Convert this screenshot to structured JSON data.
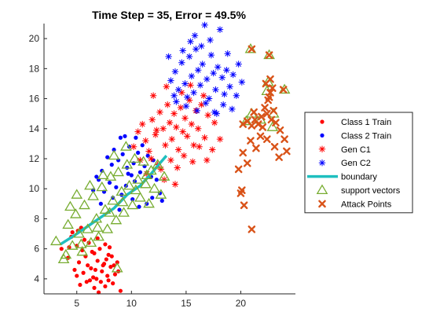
{
  "chart_data": {
    "type": "scatter",
    "title": "Time Step = 35, Error = 49.5%",
    "xlabel": "",
    "ylabel": "",
    "xlim": [
      2,
      25
    ],
    "ylim": [
      3,
      21
    ],
    "xticks": [
      5,
      10,
      15,
      20
    ],
    "yticks": [
      4,
      6,
      8,
      10,
      12,
      14,
      16,
      18,
      20
    ],
    "xtick_labels": [
      "5",
      "10",
      "15",
      "20"
    ],
    "ytick_labels": [
      "4",
      "6",
      "8",
      "10",
      "12",
      "14",
      "16",
      "18",
      "20"
    ],
    "grid": false,
    "legend_position": "right",
    "series": [
      {
        "name": "Class 1 Train",
        "marker": "dot",
        "color": "#ff0000",
        "points": [
          [
            4.2,
            5.4
          ],
          [
            4.5,
            6.8
          ],
          [
            5.1,
            7.2
          ],
          [
            5.3,
            3.6
          ],
          [
            5.6,
            4.4
          ],
          [
            5.8,
            5.5
          ],
          [
            6.0,
            4.9
          ],
          [
            6.2,
            3.9
          ],
          [
            6.4,
            5.8
          ],
          [
            6.5,
            4.1
          ],
          [
            6.7,
            4.6
          ],
          [
            6.9,
            5.2
          ],
          [
            7.0,
            3.1
          ],
          [
            7.2,
            3.8
          ],
          [
            7.3,
            4.5
          ],
          [
            7.5,
            5.0
          ],
          [
            7.6,
            3.5
          ],
          [
            7.8,
            4.2
          ],
          [
            7.9,
            5.6
          ],
          [
            8.1,
            4.8
          ],
          [
            8.3,
            3.7
          ],
          [
            8.5,
            4.3
          ],
          [
            8.7,
            5.1
          ],
          [
            9.0,
            3.2
          ],
          [
            5.0,
            6.2
          ],
          [
            5.5,
            5.9
          ],
          [
            6.1,
            6.4
          ],
          [
            6.6,
            5.7
          ],
          [
            7.1,
            6.0
          ],
          [
            7.7,
            5.3
          ],
          [
            8.0,
            6.1
          ],
          [
            8.4,
            4.9
          ],
          [
            4.8,
            4.6
          ],
          [
            5.9,
            3.8
          ],
          [
            6.8,
            4.0
          ],
          [
            7.4,
            4.9
          ],
          [
            5.2,
            5.1
          ],
          [
            6.3,
            4.7
          ],
          [
            7.9,
            3.9
          ],
          [
            5.7,
            6.6
          ],
          [
            4.3,
            6.1
          ],
          [
            6.6,
            3.4
          ],
          [
            8.8,
            4.5
          ],
          [
            5.4,
            7.4
          ],
          [
            3.6,
            6.0
          ],
          [
            4.6,
            7.1
          ],
          [
            6.9,
            6.7
          ],
          [
            7.6,
            6.3
          ],
          [
            8.2,
            5.5
          ],
          [
            5.0,
            4.2
          ]
        ]
      },
      {
        "name": "Class 2 Train",
        "marker": "dot",
        "color": "#0000ff",
        "points": [
          [
            7.0,
            10.6
          ],
          [
            7.3,
            11.2
          ],
          [
            7.5,
            9.8
          ],
          [
            7.8,
            12.1
          ],
          [
            8.0,
            10.4
          ],
          [
            8.2,
            11.6
          ],
          [
            8.4,
            12.6
          ],
          [
            8.6,
            10.1
          ],
          [
            8.8,
            11.9
          ],
          [
            9.0,
            13.4
          ],
          [
            9.2,
            12.3
          ],
          [
            9.4,
            13.5
          ],
          [
            9.6,
            11.4
          ],
          [
            9.8,
            12.8
          ],
          [
            10.0,
            10.9
          ],
          [
            10.2,
            11.7
          ],
          [
            10.4,
            13.4
          ],
          [
            10.6,
            12.4
          ],
          [
            10.8,
            11.1
          ],
          [
            11.0,
            12.9
          ],
          [
            11.2,
            11.5
          ],
          [
            11.5,
            12.2
          ],
          [
            11.8,
            10.8
          ],
          [
            12.0,
            11.9
          ],
          [
            12.3,
            10.6
          ],
          [
            12.6,
            9.7
          ],
          [
            9.1,
            9.6
          ],
          [
            8.3,
            9.4
          ],
          [
            9.5,
            10.2
          ],
          [
            10.1,
            9.3
          ],
          [
            11.4,
            9.0
          ],
          [
            10.7,
            8.8
          ],
          [
            6.5,
            9.9
          ],
          [
            7.2,
            9.0
          ],
          [
            8.9,
            8.6
          ],
          [
            10.3,
            10.5
          ],
          [
            9.7,
            11.0
          ],
          [
            11.9,
            9.4
          ],
          [
            12.8,
            9.2
          ],
          [
            6.8,
            10.8
          ]
        ]
      },
      {
        "name": "Gen C1",
        "marker": "star",
        "color": "#ff0000",
        "points": [
          [
            10.2,
            12.8
          ],
          [
            10.6,
            13.8
          ],
          [
            11.0,
            14.3
          ],
          [
            11.3,
            13.2
          ],
          [
            11.6,
            12.5
          ],
          [
            11.9,
            14.6
          ],
          [
            12.2,
            13.6
          ],
          [
            12.4,
            11.6
          ],
          [
            12.6,
            15.1
          ],
          [
            12.9,
            14.0
          ],
          [
            13.1,
            12.9
          ],
          [
            13.3,
            15.6
          ],
          [
            13.5,
            14.4
          ],
          [
            13.7,
            13.3
          ],
          [
            13.9,
            15.0
          ],
          [
            14.1,
            14.1
          ],
          [
            14.3,
            12.6
          ],
          [
            14.5,
            15.4
          ],
          [
            14.7,
            13.8
          ],
          [
            14.9,
            14.7
          ],
          [
            15.1,
            13.5
          ],
          [
            15.3,
            15.9
          ],
          [
            15.5,
            14.3
          ],
          [
            15.7,
            12.9
          ],
          [
            15.9,
            15.2
          ],
          [
            16.1,
            14.0
          ],
          [
            16.4,
            15.6
          ],
          [
            16.7,
            13.4
          ],
          [
            17.0,
            14.9
          ],
          [
            17.4,
            12.6
          ],
          [
            11.8,
            12.0
          ],
          [
            12.7,
            11.3
          ],
          [
            13.6,
            11.9
          ],
          [
            14.2,
            11.4
          ],
          [
            14.8,
            12.2
          ],
          [
            15.6,
            11.8
          ],
          [
            16.2,
            12.8
          ],
          [
            16.9,
            11.9
          ],
          [
            12.0,
            16.2
          ],
          [
            13.2,
            16.8
          ],
          [
            14.6,
            16.4
          ],
          [
            15.4,
            16.9
          ],
          [
            16.6,
            16.2
          ],
          [
            17.6,
            14.4
          ],
          [
            18.1,
            13.3
          ],
          [
            10.8,
            11.9
          ],
          [
            11.4,
            11.0
          ],
          [
            13.0,
            10.6
          ],
          [
            14.0,
            10.3
          ],
          [
            12.3,
            13.9
          ]
        ]
      },
      {
        "name": "Gen C2",
        "marker": "star",
        "color": "#0000ff",
        "points": [
          [
            13.6,
            17.2
          ],
          [
            14.0,
            17.8
          ],
          [
            14.3,
            16.6
          ],
          [
            14.6,
            18.4
          ],
          [
            14.9,
            17.0
          ],
          [
            15.1,
            16.1
          ],
          [
            15.3,
            18.8
          ],
          [
            15.5,
            17.5
          ],
          [
            15.7,
            16.4
          ],
          [
            15.9,
            19.3
          ],
          [
            16.1,
            17.9
          ],
          [
            16.3,
            16.9
          ],
          [
            16.5,
            18.3
          ],
          [
            16.7,
            20.9
          ],
          [
            16.9,
            17.3
          ],
          [
            17.1,
            16.0
          ],
          [
            17.3,
            18.9
          ],
          [
            17.5,
            17.7
          ],
          [
            17.7,
            16.6
          ],
          [
            17.9,
            18.1
          ],
          [
            18.1,
            20.6
          ],
          [
            18.3,
            17.4
          ],
          [
            18.5,
            16.3
          ],
          [
            18.7,
            17.9
          ],
          [
            19.0,
            16.8
          ],
          [
            19.3,
            17.6
          ],
          [
            19.6,
            16.2
          ],
          [
            20.1,
            17.1
          ],
          [
            14.1,
            15.8
          ],
          [
            15.0,
            15.5
          ],
          [
            16.0,
            15.2
          ],
          [
            16.8,
            15.7
          ],
          [
            17.6,
            15.1
          ],
          [
            18.4,
            15.6
          ],
          [
            19.2,
            15.3
          ],
          [
            15.4,
            19.8
          ],
          [
            16.4,
            19.5
          ],
          [
            17.2,
            19.9
          ],
          [
            13.4,
            18.8
          ],
          [
            14.7,
            19.2
          ],
          [
            18.8,
            19.0
          ],
          [
            19.8,
            18.3
          ],
          [
            13.9,
            16.2
          ],
          [
            15.8,
            20.2
          ],
          [
            17.8,
            15.0
          ]
        ]
      },
      {
        "name": "boundary",
        "marker": "line",
        "color": "#1fbfbf",
        "points": [
          [
            3.5,
            6.3
          ],
          [
            4.8,
            6.9
          ],
          [
            6.0,
            7.5
          ],
          [
            7.2,
            8.1
          ],
          [
            8.4,
            8.7
          ],
          [
            9.6,
            9.6
          ],
          [
            10.8,
            10.2
          ],
          [
            11.8,
            11.0
          ],
          [
            12.6,
            11.7
          ],
          [
            13.2,
            12.2
          ]
        ]
      },
      {
        "name": "support vectors",
        "marker": "triangle",
        "color": "#77ac30",
        "points": [
          [
            3.1,
            6.5
          ],
          [
            3.8,
            5.3
          ],
          [
            4.2,
            7.6
          ],
          [
            4.6,
            6.2
          ],
          [
            4.9,
            8.3
          ],
          [
            5.2,
            7.0
          ],
          [
            5.5,
            5.8
          ],
          [
            5.7,
            8.9
          ],
          [
            6.0,
            7.3
          ],
          [
            6.3,
            6.4
          ],
          [
            6.5,
            9.5
          ],
          [
            6.8,
            8.0
          ],
          [
            7.0,
            6.8
          ],
          [
            7.3,
            10.1
          ],
          [
            7.6,
            8.6
          ],
          [
            7.8,
            7.3
          ],
          [
            8.1,
            10.8
          ],
          [
            8.3,
            9.2
          ],
          [
            8.6,
            7.9
          ],
          [
            8.8,
            11.1
          ],
          [
            9.1,
            9.8
          ],
          [
            9.3,
            8.4
          ],
          [
            9.6,
            11.6
          ],
          [
            9.8,
            10.2
          ],
          [
            10.1,
            8.9
          ],
          [
            10.3,
            12.0
          ],
          [
            10.6,
            10.6
          ],
          [
            10.8,
            9.4
          ],
          [
            11.1,
            11.8
          ],
          [
            11.3,
            10.3
          ],
          [
            11.6,
            9.0
          ],
          [
            11.8,
            11.2
          ],
          [
            12.1,
            10.0
          ],
          [
            12.4,
            11.6
          ],
          [
            12.7,
            9.6
          ],
          [
            13.0,
            10.8
          ],
          [
            5.0,
            9.6
          ],
          [
            6.2,
            10.2
          ],
          [
            7.4,
            10.9
          ],
          [
            8.4,
            12.2
          ],
          [
            9.5,
            12.8
          ],
          [
            4.0,
            5.6
          ],
          [
            5.4,
            6.3
          ],
          [
            6.9,
            7.4
          ],
          [
            8.0,
            8.4
          ],
          [
            9.2,
            9.1
          ],
          [
            10.4,
            9.9
          ],
          [
            11.4,
            10.9
          ],
          [
            4.4,
            8.8
          ],
          [
            8.7,
            4.7
          ],
          [
            20.9,
            19.3
          ],
          [
            22.6,
            18.9
          ],
          [
            22.5,
            17.1
          ],
          [
            22.4,
            16.5
          ],
          [
            24.0,
            16.6
          ],
          [
            21.0,
            15.0
          ],
          [
            20.5,
            14.5
          ],
          [
            23.0,
            15.0
          ],
          [
            21.8,
            14.6
          ],
          [
            22.9,
            14.1
          ]
        ]
      },
      {
        "name": "Attack Points",
        "marker": "x",
        "color": "#d95319",
        "points": [
          [
            20.2,
            14.3
          ],
          [
            20.6,
            14.5
          ],
          [
            21.0,
            14.2
          ],
          [
            21.3,
            14.6
          ],
          [
            21.6,
            14.3
          ],
          [
            21.9,
            14.8
          ],
          [
            22.2,
            15.4
          ],
          [
            22.5,
            15.9
          ],
          [
            22.7,
            16.4
          ],
          [
            23.0,
            15.2
          ],
          [
            22.8,
            14.6
          ],
          [
            22.4,
            15.0
          ],
          [
            22.6,
            16.1
          ],
          [
            22.9,
            16.7
          ],
          [
            22.3,
            17.0
          ],
          [
            21.0,
            19.3
          ],
          [
            22.6,
            18.9
          ],
          [
            23.9,
            16.6
          ],
          [
            20.9,
            13.2
          ],
          [
            21.4,
            12.7
          ],
          [
            20.2,
            12.4
          ],
          [
            20.6,
            11.7
          ],
          [
            19.8,
            11.3
          ],
          [
            20.1,
            9.9
          ],
          [
            20.0,
            9.7
          ],
          [
            20.3,
            8.9
          ],
          [
            21.0,
            7.3
          ],
          [
            22.4,
            13.3
          ],
          [
            23.1,
            12.8
          ],
          [
            23.6,
            13.9
          ],
          [
            24.0,
            13.3
          ],
          [
            24.2,
            12.5
          ],
          [
            23.5,
            12.1
          ],
          [
            21.8,
            13.5
          ],
          [
            22.0,
            14.1
          ],
          [
            21.2,
            15.1
          ],
          [
            22.7,
            17.3
          ],
          [
            23.2,
            14.4
          ]
        ]
      }
    ]
  },
  "legend": {
    "entries": [
      {
        "label": "Class 1 Train",
        "marker": "dot",
        "color": "#ff0000"
      },
      {
        "label": "Class 2 Train",
        "marker": "dot",
        "color": "#0000ff"
      },
      {
        "label": "Gen C1",
        "marker": "star",
        "color": "#ff0000"
      },
      {
        "label": "Gen C2",
        "marker": "star",
        "color": "#0000ff"
      },
      {
        "label": "boundary",
        "marker": "line",
        "color": "#1fbfbf"
      },
      {
        "label": "support vectors",
        "marker": "triangle",
        "color": "#77ac30"
      },
      {
        "label": "Attack Points",
        "marker": "x",
        "color": "#d95319"
      }
    ]
  }
}
